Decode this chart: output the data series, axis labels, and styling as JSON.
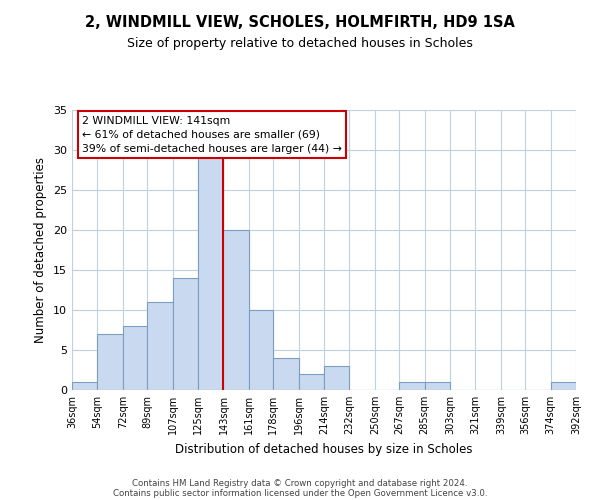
{
  "title": "2, WINDMILL VIEW, SCHOLES, HOLMFIRTH, HD9 1SA",
  "subtitle": "Size of property relative to detached houses in Scholes",
  "xlabel": "Distribution of detached houses by size in Scholes",
  "ylabel": "Number of detached properties",
  "bar_edges": [
    36,
    54,
    72,
    89,
    107,
    125,
    143,
    161,
    178,
    196,
    214,
    232,
    250,
    267,
    285,
    303,
    321,
    339,
    356,
    374,
    392
  ],
  "bar_heights": [
    1,
    7,
    8,
    11,
    14,
    29,
    20,
    10,
    4,
    2,
    3,
    0,
    0,
    1,
    1,
    0,
    0,
    0,
    0,
    1
  ],
  "tick_labels": [
    "36sqm",
    "54sqm",
    "72sqm",
    "89sqm",
    "107sqm",
    "125sqm",
    "143sqm",
    "161sqm",
    "178sqm",
    "196sqm",
    "214sqm",
    "232sqm",
    "250sqm",
    "267sqm",
    "285sqm",
    "303sqm",
    "321sqm",
    "339sqm",
    "356sqm",
    "374sqm",
    "392sqm"
  ],
  "bar_color": "#c9d9f0",
  "bar_edgecolor": "#7a9fc2",
  "property_line_x": 143,
  "property_line_color": "#cc0000",
  "ylim": [
    0,
    35
  ],
  "yticks": [
    0,
    5,
    10,
    15,
    20,
    25,
    30,
    35
  ],
  "annotation_title": "2 WINDMILL VIEW: 141sqm",
  "annotation_line1": "← 61% of detached houses are smaller (69)",
  "annotation_line2": "39% of semi-detached houses are larger (44) →",
  "annotation_box_color": "#ffffff",
  "annotation_box_edgecolor": "#cc0000",
  "footer_line1": "Contains HM Land Registry data © Crown copyright and database right 2024.",
  "footer_line2": "Contains public sector information licensed under the Open Government Licence v3.0.",
  "background_color": "#ffffff",
  "grid_color": "#c0d0e0"
}
